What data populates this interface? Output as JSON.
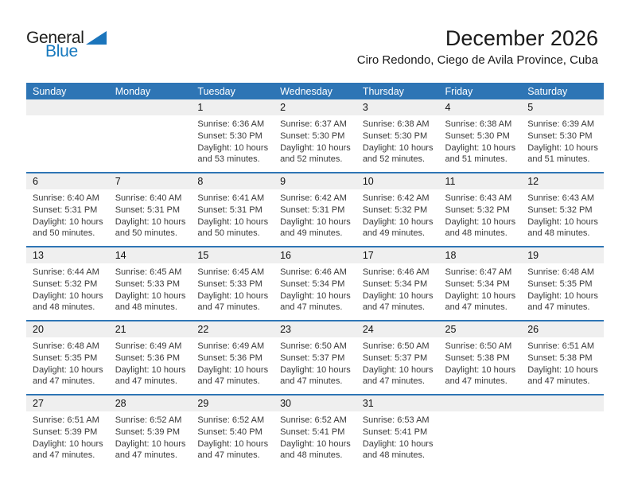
{
  "logo": {
    "part1": "General",
    "part2": "Blue",
    "triangle_color": "#1b75bc"
  },
  "header": {
    "title": "December 2026",
    "subtitle": "Ciro Redondo, Ciego de Avila Province, Cuba"
  },
  "colors": {
    "header_bar": "#2e75b5",
    "week_separator": "#2e75b5",
    "day_number_band": "#efefef"
  },
  "calendar": {
    "day_headers": [
      "Sunday",
      "Monday",
      "Tuesday",
      "Wednesday",
      "Thursday",
      "Friday",
      "Saturday"
    ],
    "weeks": [
      {
        "days": [
          null,
          null,
          {
            "date": "1",
            "sunrise": "Sunrise: 6:36 AM",
            "sunset": "Sunset: 5:30 PM",
            "daylight": "Daylight: 10 hours\nand 53 minutes."
          },
          {
            "date": "2",
            "sunrise": "Sunrise: 6:37 AM",
            "sunset": "Sunset: 5:30 PM",
            "daylight": "Daylight: 10 hours\nand 52 minutes."
          },
          {
            "date": "3",
            "sunrise": "Sunrise: 6:38 AM",
            "sunset": "Sunset: 5:30 PM",
            "daylight": "Daylight: 10 hours\nand 52 minutes."
          },
          {
            "date": "4",
            "sunrise": "Sunrise: 6:38 AM",
            "sunset": "Sunset: 5:30 PM",
            "daylight": "Daylight: 10 hours\nand 51 minutes."
          },
          {
            "date": "5",
            "sunrise": "Sunrise: 6:39 AM",
            "sunset": "Sunset: 5:30 PM",
            "daylight": "Daylight: 10 hours\nand 51 minutes."
          }
        ]
      },
      {
        "days": [
          {
            "date": "6",
            "sunrise": "Sunrise: 6:40 AM",
            "sunset": "Sunset: 5:31 PM",
            "daylight": "Daylight: 10 hours\nand 50 minutes."
          },
          {
            "date": "7",
            "sunrise": "Sunrise: 6:40 AM",
            "sunset": "Sunset: 5:31 PM",
            "daylight": "Daylight: 10 hours\nand 50 minutes."
          },
          {
            "date": "8",
            "sunrise": "Sunrise: 6:41 AM",
            "sunset": "Sunset: 5:31 PM",
            "daylight": "Daylight: 10 hours\nand 50 minutes."
          },
          {
            "date": "9",
            "sunrise": "Sunrise: 6:42 AM",
            "sunset": "Sunset: 5:31 PM",
            "daylight": "Daylight: 10 hours\nand 49 minutes."
          },
          {
            "date": "10",
            "sunrise": "Sunrise: 6:42 AM",
            "sunset": "Sunset: 5:32 PM",
            "daylight": "Daylight: 10 hours\nand 49 minutes."
          },
          {
            "date": "11",
            "sunrise": "Sunrise: 6:43 AM",
            "sunset": "Sunset: 5:32 PM",
            "daylight": "Daylight: 10 hours\nand 48 minutes."
          },
          {
            "date": "12",
            "sunrise": "Sunrise: 6:43 AM",
            "sunset": "Sunset: 5:32 PM",
            "daylight": "Daylight: 10 hours\nand 48 minutes."
          }
        ]
      },
      {
        "days": [
          {
            "date": "13",
            "sunrise": "Sunrise: 6:44 AM",
            "sunset": "Sunset: 5:32 PM",
            "daylight": "Daylight: 10 hours\nand 48 minutes."
          },
          {
            "date": "14",
            "sunrise": "Sunrise: 6:45 AM",
            "sunset": "Sunset: 5:33 PM",
            "daylight": "Daylight: 10 hours\nand 48 minutes."
          },
          {
            "date": "15",
            "sunrise": "Sunrise: 6:45 AM",
            "sunset": "Sunset: 5:33 PM",
            "daylight": "Daylight: 10 hours\nand 47 minutes."
          },
          {
            "date": "16",
            "sunrise": "Sunrise: 6:46 AM",
            "sunset": "Sunset: 5:34 PM",
            "daylight": "Daylight: 10 hours\nand 47 minutes."
          },
          {
            "date": "17",
            "sunrise": "Sunrise: 6:46 AM",
            "sunset": "Sunset: 5:34 PM",
            "daylight": "Daylight: 10 hours\nand 47 minutes."
          },
          {
            "date": "18",
            "sunrise": "Sunrise: 6:47 AM",
            "sunset": "Sunset: 5:34 PM",
            "daylight": "Daylight: 10 hours\nand 47 minutes."
          },
          {
            "date": "19",
            "sunrise": "Sunrise: 6:48 AM",
            "sunset": "Sunset: 5:35 PM",
            "daylight": "Daylight: 10 hours\nand 47 minutes."
          }
        ]
      },
      {
        "days": [
          {
            "date": "20",
            "sunrise": "Sunrise: 6:48 AM",
            "sunset": "Sunset: 5:35 PM",
            "daylight": "Daylight: 10 hours\nand 47 minutes."
          },
          {
            "date": "21",
            "sunrise": "Sunrise: 6:49 AM",
            "sunset": "Sunset: 5:36 PM",
            "daylight": "Daylight: 10 hours\nand 47 minutes."
          },
          {
            "date": "22",
            "sunrise": "Sunrise: 6:49 AM",
            "sunset": "Sunset: 5:36 PM",
            "daylight": "Daylight: 10 hours\nand 47 minutes."
          },
          {
            "date": "23",
            "sunrise": "Sunrise: 6:50 AM",
            "sunset": "Sunset: 5:37 PM",
            "daylight": "Daylight: 10 hours\nand 47 minutes."
          },
          {
            "date": "24",
            "sunrise": "Sunrise: 6:50 AM",
            "sunset": "Sunset: 5:37 PM",
            "daylight": "Daylight: 10 hours\nand 47 minutes."
          },
          {
            "date": "25",
            "sunrise": "Sunrise: 6:50 AM",
            "sunset": "Sunset: 5:38 PM",
            "daylight": "Daylight: 10 hours\nand 47 minutes."
          },
          {
            "date": "26",
            "sunrise": "Sunrise: 6:51 AM",
            "sunset": "Sunset: 5:38 PM",
            "daylight": "Daylight: 10 hours\nand 47 minutes."
          }
        ]
      },
      {
        "days": [
          {
            "date": "27",
            "sunrise": "Sunrise: 6:51 AM",
            "sunset": "Sunset: 5:39 PM",
            "daylight": "Daylight: 10 hours\nand 47 minutes."
          },
          {
            "date": "28",
            "sunrise": "Sunrise: 6:52 AM",
            "sunset": "Sunset: 5:39 PM",
            "daylight": "Daylight: 10 hours\nand 47 minutes."
          },
          {
            "date": "29",
            "sunrise": "Sunrise: 6:52 AM",
            "sunset": "Sunset: 5:40 PM",
            "daylight": "Daylight: 10 hours\nand 47 minutes."
          },
          {
            "date": "30",
            "sunrise": "Sunrise: 6:52 AM",
            "sunset": "Sunset: 5:41 PM",
            "daylight": "Daylight: 10 hours\nand 48 minutes."
          },
          {
            "date": "31",
            "sunrise": "Sunrise: 6:53 AM",
            "sunset": "Sunset: 5:41 PM",
            "daylight": "Daylight: 10 hours\nand 48 minutes."
          },
          null,
          null
        ]
      }
    ]
  }
}
